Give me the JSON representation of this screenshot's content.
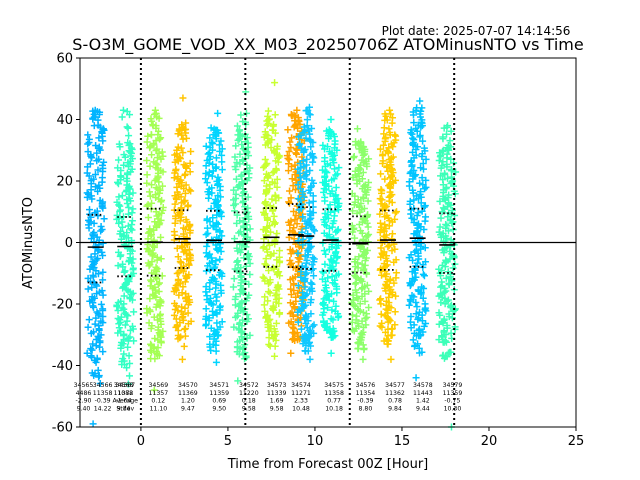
{
  "plot_date": "Plot date: 2025-07-07 14:14:56",
  "chart_data": {
    "type": "scatter",
    "title": "S-O3M_GOME_VOD_XX_M03_20250706Z ATOMinusNTO vs Time",
    "xlabel": "Time from Forecast 00Z [Hour]",
    "ylabel": "ATOMinusNTO",
    "xlim": [
      -3.5,
      25
    ],
    "ylim": [
      -60,
      60
    ],
    "xticks": [
      "0",
      "5",
      "10",
      "15",
      "20",
      "25"
    ],
    "yticks": [
      "60",
      "40",
      "20",
      "0",
      "-20",
      "-40",
      "-60"
    ],
    "xtick_values": [
      0,
      5,
      10,
      15,
      20,
      25
    ],
    "ytick_values": [
      60,
      40,
      20,
      0,
      -20,
      -40,
      -60
    ],
    "reference_line_y": 0,
    "vertical_dotted_lines_x": [
      0,
      6,
      12,
      18
    ],
    "grid": false,
    "marker": "+",
    "groups": [
      {
        "x": -2.6,
        "color": "#00b4ff",
        "core_lo": -36,
        "core_hi": 38,
        "whisk_lo": -46,
        "whisk_hi": 43,
        "mean": -1.5,
        "q_hi": 9.0,
        "q_lo": -13.0,
        "ext_lo": -59,
        "ext_hi": 43
      },
      {
        "x": -0.9,
        "color": "#32ffc4",
        "core_lo": -32,
        "core_hi": 32,
        "whisk_lo": -44,
        "whisk_hi": 43,
        "mean": -1.3,
        "q_hi": 8.3,
        "q_lo": -11.0,
        "ext_lo": -46,
        "ext_hi": 43
      },
      {
        "x": 0.8,
        "color": "#a4ff53",
        "core_lo": -34,
        "core_hi": 35,
        "whisk_lo": -40,
        "whisk_hi": 42,
        "mean": 0.1,
        "q_hi": 11.0,
        "q_lo": -10.8,
        "ext_lo": -48,
        "ext_hi": 43
      },
      {
        "x": 2.4,
        "color": "#ffc400",
        "core_lo": -28,
        "core_hi": 30,
        "whisk_lo": -34,
        "whisk_hi": 40,
        "mean": 1.2,
        "q_hi": 10.5,
        "q_lo": -8.3,
        "ext_lo": -38,
        "ext_hi": 47
      },
      {
        "x": 4.2,
        "color": "#00d4ff",
        "core_lo": -30,
        "core_hi": 33,
        "whisk_lo": -36,
        "whisk_hi": 38,
        "mean": 0.7,
        "q_hi": 10.3,
        "q_lo": -9.0,
        "ext_lo": -39,
        "ext_hi": 42
      },
      {
        "x": 5.8,
        "color": "#50ffa8",
        "core_lo": -32,
        "core_hi": 35,
        "whisk_lo": -38,
        "whisk_hi": 42,
        "mean": 0.2,
        "q_hi": 9.8,
        "q_lo": -9.4,
        "ext_lo": -45,
        "ext_hi": 49
      },
      {
        "x": 7.5,
        "color": "#c8ff30",
        "core_lo": -28,
        "core_hi": 36,
        "whisk_lo": -34,
        "whisk_hi": 44,
        "mean": 1.7,
        "q_hi": 11.2,
        "q_lo": -7.9,
        "ext_lo": -37,
        "ext_hi": 52
      },
      {
        "x": 8.9,
        "color": "#ffa400",
        "core_lo": -28,
        "core_hi": 38,
        "whisk_lo": -32,
        "whisk_hi": 42,
        "mean": 2.5,
        "q_hi": 12.5,
        "q_lo": -8.0,
        "ext_lo": -36,
        "ext_hi": 43
      },
      {
        "x": 9.5,
        "color": "#0ec8ff",
        "core_lo": -30,
        "core_hi": 38,
        "whisk_lo": -36,
        "whisk_hi": 43,
        "mean": 2.1,
        "q_hi": 11.5,
        "q_lo": -8.6,
        "ext_lo": -38,
        "ext_hi": 44
      },
      {
        "x": 10.9,
        "color": "#14ffe0",
        "core_lo": -28,
        "core_hi": 32,
        "whisk_lo": -33,
        "whisk_hi": 38,
        "mean": 0.8,
        "q_hi": 10.8,
        "q_lo": -9.2,
        "ext_lo": -36,
        "ext_hi": 40
      },
      {
        "x": 12.6,
        "color": "#8cff6a",
        "core_lo": -30,
        "core_hi": 30,
        "whisk_lo": -35,
        "whisk_hi": 33,
        "mean": -0.4,
        "q_hi": 8.5,
        "q_lo": -9.8,
        "ext_lo": -38,
        "ext_hi": 37
      },
      {
        "x": 14.2,
        "color": "#ffcc00",
        "core_lo": -28,
        "core_hi": 35,
        "whisk_lo": -34,
        "whisk_hi": 42,
        "mean": 0.8,
        "q_hi": 10.4,
        "q_lo": -8.9,
        "ext_lo": -38,
        "ext_hi": 43
      },
      {
        "x": 15.9,
        "color": "#00c4ff",
        "core_lo": -30,
        "core_hi": 38,
        "whisk_lo": -36,
        "whisk_hi": 44,
        "mean": 1.4,
        "q_hi": 11.0,
        "q_lo": -7.9,
        "ext_lo": -44,
        "ext_hi": 46
      },
      {
        "x": 17.6,
        "color": "#3cffb8",
        "core_lo": -32,
        "core_hi": 30,
        "whisk_lo": -38,
        "whisk_hi": 38,
        "mean": -0.8,
        "q_hi": 9.5,
        "q_lo": -9.9,
        "ext_lo": -60,
        "ext_hi": 38
      }
    ],
    "stat_labels": [
      {
        "x": -3.3,
        "lines": [
          "34565",
          "4486",
          "-2.90",
          "9.40"
        ]
      },
      {
        "x": -2.2,
        "lines": [
          "34566",
          "11358",
          "-0.39",
          "14.22"
        ]
      },
      {
        "x": -0.9,
        "lines": [
          "34567",
          "1088",
          "Average",
          "Stdev"
        ]
      },
      {
        "x": -1.0,
        "lines": [
          "34568",
          "11372",
          "-1.64",
          "9.74"
        ]
      },
      {
        "x": 1.0,
        "lines": [
          "34569",
          "11357",
          "0.12",
          "11.10"
        ]
      },
      {
        "x": 2.7,
        "lines": [
          "34570",
          "11369",
          "1.20",
          "9.47"
        ]
      },
      {
        "x": 4.5,
        "lines": [
          "34571",
          "11359",
          "0.69",
          "9.50"
        ]
      },
      {
        "x": 6.2,
        "lines": [
          "34572",
          "11220",
          "0.18",
          "9.58"
        ]
      },
      {
        "x": 7.8,
        "lines": [
          "34573",
          "11339",
          "1.69",
          "9.58"
        ]
      },
      {
        "x": 9.2,
        "lines": [
          "34574",
          "11271",
          "2.33",
          "10.48"
        ]
      },
      {
        "x": 11.1,
        "lines": [
          "34575",
          "11358",
          "0.77",
          "10.18"
        ]
      },
      {
        "x": 12.9,
        "lines": [
          "34576",
          "11354",
          "-0.39",
          "8.80"
        ]
      },
      {
        "x": 14.6,
        "lines": [
          "34577",
          "11362",
          "0.78",
          "9.84"
        ]
      },
      {
        "x": 16.2,
        "lines": [
          "34578",
          "11443",
          "1.42",
          "9.44"
        ]
      },
      {
        "x": 17.9,
        "lines": [
          "34579",
          "11359",
          "-0.75",
          "10.30"
        ]
      }
    ]
  }
}
